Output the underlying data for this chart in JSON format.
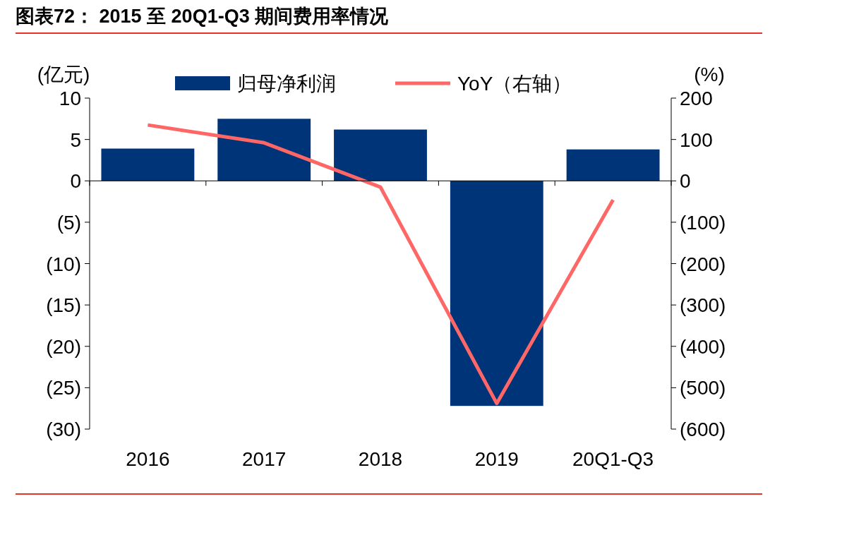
{
  "chart_data": {
    "type": "bar",
    "title": "图表72：  2015 至 20Q1-Q3 期间费用率情况",
    "ylabel": "(亿元)",
    "y2label": "(%)",
    "categories": [
      "2016",
      "2017",
      "2018",
      "2019",
      "20Q1-Q3"
    ],
    "series": [
      {
        "name": "归母净利润",
        "color": "#003478",
        "values": [
          3.9,
          7.5,
          6.2,
          -27.2,
          3.8
        ]
      },
      {
        "name": "YoY（右轴）",
        "type": "line",
        "axis": "y2",
        "color": "#ff6666",
        "values": [
          135,
          92,
          -15,
          -538,
          -46
        ]
      }
    ],
    "ylim": [
      -30,
      10
    ],
    "yticks": [
      {
        "value": -30,
        "label": "(30)"
      },
      {
        "value": -25,
        "label": "(25)"
      },
      {
        "value": -20,
        "label": "(20)"
      },
      {
        "value": -15,
        "label": "(15)"
      },
      {
        "value": -10,
        "label": "(10)"
      },
      {
        "value": -5,
        "label": "(5)"
      },
      0,
      5,
      10
    ],
    "y2lim": [
      -600,
      200
    ],
    "y2ticks": [
      {
        "value": -600,
        "label": "(600)"
      },
      {
        "value": -500,
        "label": "(500)"
      },
      {
        "value": -400,
        "label": "(400)"
      },
      {
        "value": -300,
        "label": "(300)"
      },
      {
        "value": -200,
        "label": "(200)"
      },
      {
        "value": -100,
        "label": "(100)"
      },
      0,
      100,
      200
    ],
    "legend": "top"
  }
}
